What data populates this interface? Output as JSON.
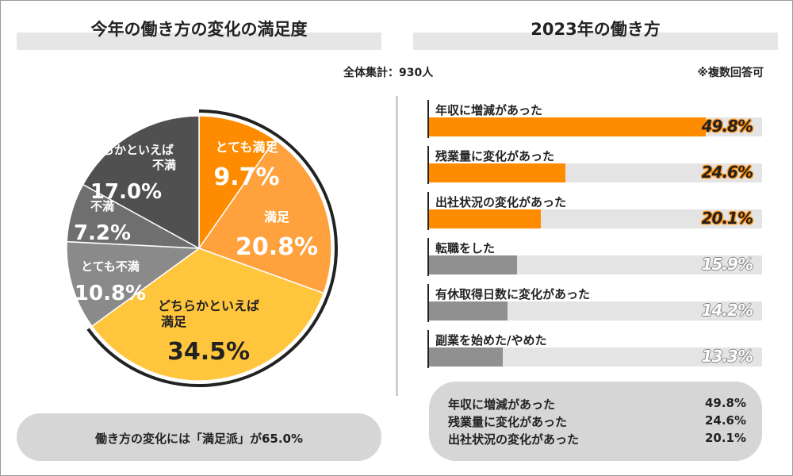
{
  "colors": {
    "orange": "#ff8c00",
    "light_orange": "#ffa13d",
    "yellow": "#ffc53d",
    "gray_mid": "#8a8a8a",
    "gray_dark": "#6f6f6f",
    "gray_darkest": "#505050",
    "bar_gray": "#909090"
  },
  "header": {
    "left_title": "今年の働き方の変化の満足度",
    "right_title": "2023年の働き方",
    "total": "全体集計：930人",
    "note": "※複数回答可"
  },
  "chart_data": [
    {
      "type": "pie",
      "title": "今年の働き方の変化の満足度",
      "slices": [
        {
          "name": "とても満足",
          "value": 9.7,
          "display": "9.7%"
        },
        {
          "name": "満足",
          "value": 20.8,
          "display": "20.8%"
        },
        {
          "name": "どちらかといえば満足",
          "value": 34.5,
          "display": "34.5%"
        },
        {
          "name": "とても不満",
          "value": 10.8,
          "display": "10.8%"
        },
        {
          "name": "不満",
          "value": 7.2,
          "display": "7.2%"
        },
        {
          "name": "どちらかといえば不満",
          "value": 17.0,
          "display": "17.0%"
        }
      ]
    },
    {
      "type": "bar",
      "orientation": "horizontal",
      "title": "2023年の働き方",
      "xlim": [
        0,
        60
      ],
      "categories": [
        "年収に増減があった",
        "残業量に変化があった",
        "出社状況の変化があった",
        "転職をした",
        "有休取得日数に変化があった",
        "副業を始めた/やめた"
      ],
      "values": [
        49.8,
        24.6,
        20.1,
        15.9,
        14.2,
        13.3
      ],
      "display": [
        "49.8%",
        "24.6%",
        "20.1%",
        "15.9%",
        "14.2%",
        "13.3%"
      ]
    }
  ],
  "summary_left": "働き方の変化には「満足派」が65.0%",
  "summary_right": [
    {
      "label": "年収に増減があった",
      "value": "49.8%"
    },
    {
      "label": "残業量に変化があった",
      "value": "24.6%"
    },
    {
      "label": "出社状況の変化があった",
      "value": "20.1%"
    }
  ]
}
